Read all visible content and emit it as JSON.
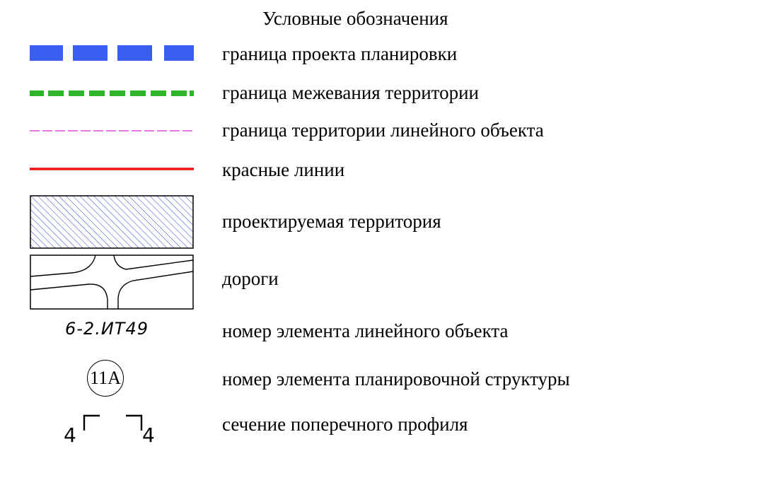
{
  "legend": {
    "title": "Условные обозначения",
    "colors": {
      "project_boundary": "#3a5ff0",
      "survey_boundary": "#2fb52a",
      "linear_object_boundary": "#e24ad8",
      "red_lines": "#ee1111",
      "hatch": "#2a3cc7"
    },
    "items": [
      {
        "id": "project-boundary",
        "symbol": "blue-dashed-line",
        "label": "граница проекта планировки"
      },
      {
        "id": "survey-boundary",
        "symbol": "green-dashed-line",
        "label": "граница межевания территории"
      },
      {
        "id": "linear-object-boundary",
        "symbol": "magenta-dashed-line",
        "label": "граница территории линейного объекта"
      },
      {
        "id": "red-lines",
        "symbol": "red-solid-line",
        "label": "красные линии"
      },
      {
        "id": "designed-territory",
        "symbol": "hatched-rectangle",
        "label": "проектируемая территория"
      },
      {
        "id": "roads",
        "symbol": "road-intersection",
        "label": "дороги"
      },
      {
        "id": "linear-element-number",
        "symbol": "element-code",
        "symbol_text": "6-2.ИТ49",
        "label": "номер элемента линейного объекта"
      },
      {
        "id": "planning-element-number",
        "symbol": "circled-number",
        "symbol_text": "11А",
        "label": "номер элемента планировочной структуры"
      },
      {
        "id": "cross-section",
        "symbol": "section-markers",
        "symbol_left": "4",
        "symbol_right": "4",
        "label": "сечение поперечного профиля"
      }
    ]
  }
}
